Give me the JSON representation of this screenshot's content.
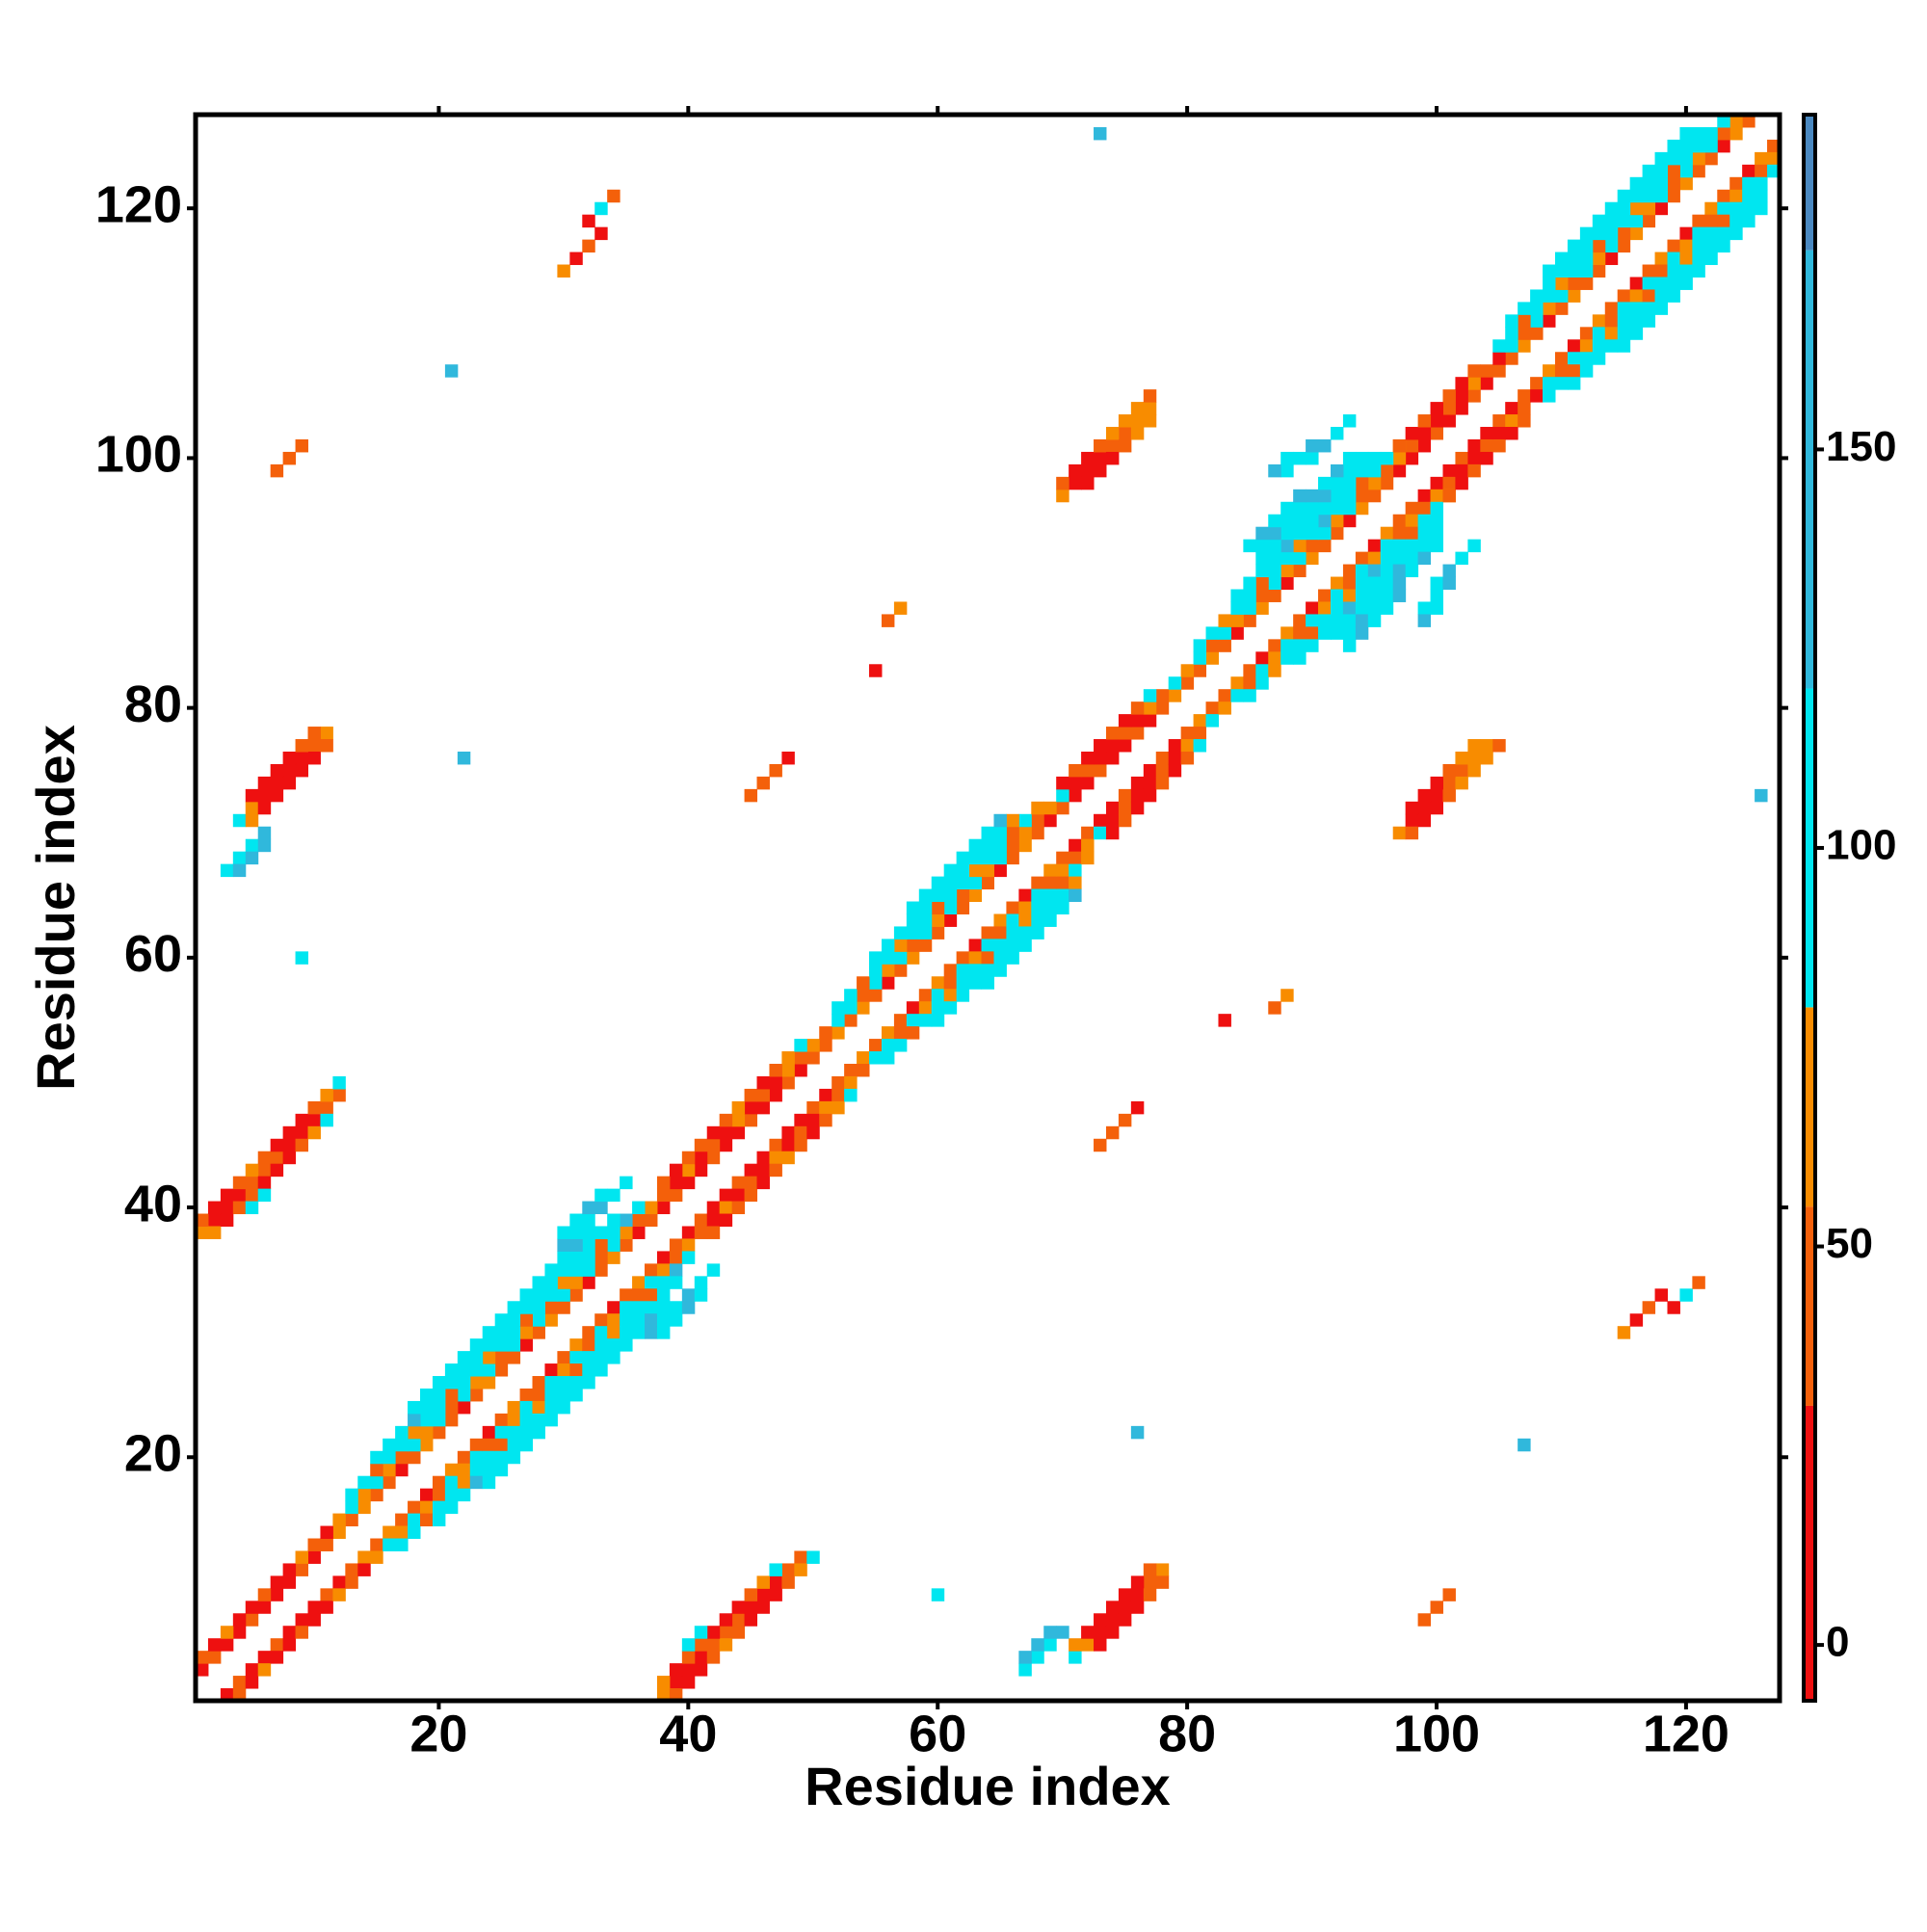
{
  "chart_data": {
    "type": "heatmap",
    "xlabel": "Residue index",
    "ylabel": "Residue index",
    "xlim": [
      0.5,
      127.5
    ],
    "ylim": [
      0.5,
      127.5
    ],
    "xticks": [
      20,
      40,
      60,
      80,
      100,
      120
    ],
    "yticks": [
      20,
      40,
      60,
      80,
      100,
      120
    ],
    "symmetric": true,
    "clim": [
      -7,
      192
    ],
    "cticks": [
      0,
      50,
      100,
      150
    ],
    "color_stops": [
      {
        "value": -7,
        "color": "#ee1010"
      },
      {
        "value": 30,
        "color": "#f4600a"
      },
      {
        "value": 55,
        "color": "#f88c00"
      },
      {
        "value": 80,
        "color": "#00e6f0"
      },
      {
        "value": 120,
        "color": "#30b8dc"
      },
      {
        "value": 175,
        "color": "#4a88c0"
      }
    ],
    "runs": [
      {
        "offset": 2,
        "start": 1,
        "values": [
          10,
          40,
          10,
          10,
          40,
          10,
          10,
          10,
          40,
          10,
          40,
          65,
          40,
          65,
          40,
          40,
          10,
          40,
          65,
          40,
          40,
          10,
          40,
          65,
          40,
          40,
          10,
          40,
          65,
          40,
          40,
          10,
          40,
          65,
          40,
          10,
          40,
          10,
          40,
          10,
          10,
          40,
          10,
          10,
          40,
          10,
          10,
          40,
          10,
          40,
          40,
          65,
          40,
          65,
          40,
          10,
          40,
          65,
          40,
          40,
          10,
          40,
          65,
          40,
          10,
          40,
          65,
          40,
          10,
          40,
          10,
          10,
          40,
          10,
          10,
          40,
          10,
          40,
          65,
          40,
          40,
          65,
          40,
          10,
          40,
          65,
          40,
          10,
          40,
          65,
          40,
          40,
          10,
          65,
          40,
          40,
          10,
          10,
          10,
          40,
          10,
          10,
          40,
          10,
          40,
          40,
          65,
          40,
          10,
          40,
          65,
          40,
          40,
          10,
          40,
          65,
          40,
          10,
          40,
          65,
          40,
          40,
          10,
          65,
          40
        ]
      },
      {
        "offset": 3,
        "start": 1,
        "values": [
          40,
          10,
          65,
          10,
          10,
          40,
          10,
          10,
          65,
          40,
          10,
          65,
          100,
          65,
          100,
          65,
          40,
          100,
          65,
          100,
          40,
          100,
          65,
          100,
          40,
          100,
          65,
          100,
          40,
          100,
          65,
          100,
          40,
          100,
          65,
          40,
          65,
          40,
          10,
          65,
          10,
          40,
          10,
          65,
          10,
          40,
          10,
          65,
          40,
          65,
          40,
          100,
          100,
          40,
          100,
          65,
          100,
          40,
          100,
          65,
          100,
          40,
          100,
          65,
          100,
          40,
          65,
          40,
          65,
          100,
          10,
          40,
          10,
          10,
          40,
          10,
          65,
          40,
          100,
          65,
          100,
          40,
          100,
          65,
          100,
          40,
          100,
          65,
          100,
          40,
          100,
          65,
          100,
          40,
          65,
          40,
          65,
          40,
          10,
          10,
          40,
          10,
          65,
          40,
          10,
          100,
          40,
          100,
          65,
          100,
          40,
          100,
          65,
          100,
          40,
          100,
          65,
          100,
          40,
          100,
          65,
          100,
          40,
          65
        ]
      },
      {
        "offset": 4,
        "start": 13,
        "values": [
          100,
          100,
          40,
          100,
          100,
          65,
          100,
          100,
          40,
          100,
          100,
          65,
          100,
          100,
          40,
          100,
          100,
          65,
          100,
          100,
          40,
          100,
          140,
          100
        ]
      },
      {
        "offset": 4,
        "start": 52,
        "values": [
          100,
          100,
          40,
          100,
          100,
          65,
          100,
          100,
          40,
          100,
          100,
          65,
          100,
          100,
          40,
          100,
          65
        ]
      },
      {
        "offset": 4,
        "start": 81,
        "values": [
          100,
          100,
          65,
          100,
          100,
          40,
          100,
          100,
          65,
          100,
          140,
          100,
          100,
          40,
          100,
          100,
          65
        ]
      },
      {
        "offset": 4,
        "start": 105,
        "values": [
          100,
          100,
          40,
          100,
          100,
          65,
          100,
          100,
          40,
          100,
          100,
          65,
          100,
          100,
          40,
          100,
          100,
          100,
          100
        ]
      },
      {
        "offset": 4,
        "start": 38,
        "values": [
          40,
          10,
          40,
          40,
          10,
          40,
          65,
          40,
          10,
          40,
          65,
          100
        ]
      },
      {
        "offset": 4,
        "start": 70,
        "values": [
          10,
          40,
          10,
          10,
          40,
          10,
          40,
          100
        ]
      },
      {
        "offset": 4,
        "start": 97,
        "values": [
          40,
          10,
          40,
          10,
          40,
          10,
          40
        ]
      },
      {
        "offset": 5,
        "start": 15,
        "values": [
          100,
          100,
          100,
          140,
          100,
          100,
          100,
          100,
          100,
          100,
          100,
          100,
          100,
          100,
          100,
          100,
          100,
          100,
          100,
          100
        ]
      },
      {
        "offset": 5,
        "start": 55,
        "values": [
          100,
          100,
          100,
          100,
          100,
          100,
          100,
          100,
          100,
          100,
          100,
          65
        ]
      },
      {
        "offset": 5,
        "start": 84,
        "values": [
          100,
          100,
          100,
          100,
          140,
          100,
          100,
          100,
          100,
          100,
          100,
          100
        ]
      },
      {
        "offset": 5,
        "start": 106,
        "values": [
          100,
          100,
          100,
          100,
          100,
          100,
          100,
          100,
          100,
          100,
          100,
          100,
          100,
          100,
          100,
          100
        ]
      },
      {
        "offset": 6,
        "start": 18,
        "values": [
          100,
          100,
          100,
          100,
          100,
          100,
          100,
          100,
          100,
          100,
          100,
          100,
          100,
          140,
          100
        ]
      },
      {
        "offset": 6,
        "start": 58,
        "values": [
          100,
          100,
          100,
          100,
          100,
          100,
          100,
          140
        ]
      },
      {
        "offset": 6,
        "start": 86,
        "values": [
          100,
          100,
          100,
          100,
          100,
          140,
          100,
          100,
          100
        ]
      },
      {
        "offset": 6,
        "start": 109,
        "values": [
          100,
          100,
          100,
          100,
          100,
          100,
          100,
          100,
          100,
          100,
          100,
          100
        ]
      },
      {
        "offset": 7,
        "start": 30,
        "values": [
          140,
          100,
          100,
          140,
          100,
          100
        ]
      },
      {
        "offset": 7,
        "start": 86,
        "values": [
          100,
          140,
          100,
          100,
          140,
          100,
          140,
          100
        ]
      },
      {
        "offset": 8,
        "start": 30,
        "values": [
          100,
          100,
          140,
          100
        ]
      },
      {
        "offset": 8,
        "start": 85,
        "values": [
          100,
          140,
          100,
          100,
          140
        ]
      },
      {
        "offset": 10,
        "start": 90,
        "values": [
          100,
          140,
          100,
          100
        ]
      },
      {
        "offset": 11,
        "start": 88,
        "values": [
          100,
          100,
          140
        ]
      },
      {
        "offset": 12,
        "start": 87,
        "values": [
          140,
          100
        ]
      },
      {
        "offset": 37,
        "start": 1,
        "values": [
          65,
          10,
          10,
          10,
          40,
          40,
          40,
          10,
          10,
          10,
          40,
          40
        ]
      },
      {
        "offset": 38,
        "start": 1,
        "values": [
          40,
          10,
          10,
          40,
          65,
          40,
          10,
          10,
          10,
          40,
          65,
          100
        ]
      },
      {
        "offset": 36,
        "start": 2,
        "values": [
          65,
          10,
          40,
          40,
          10,
          10,
          10,
          40,
          65,
          100
        ]
      },
      {
        "offset": 35,
        "start": 5,
        "values": [
          100,
          100
        ]
      },
      {
        "offset": 67,
        "start": 4,
        "values": [
          100,
          65,
          10,
          10,
          10,
          10,
          40,
          65
        ]
      },
      {
        "offset": 66,
        "start": 5,
        "values": [
          65,
          10,
          10,
          10,
          10,
          10,
          40
        ]
      },
      {
        "offset": 68,
        "start": 5,
        "values": [
          10,
          10,
          10,
          10,
          40,
          40
        ]
      },
      {
        "offset": 64,
        "start": 3,
        "values": [
          100,
          100,
          100,
          140
        ]
      },
      {
        "offset": 63,
        "start": 4,
        "values": [
          140,
          140,
          140
        ]
      },
      {
        "offset": 27,
        "start": 70,
        "values": [
          65,
          10,
          10,
          10,
          40,
          40,
          65,
          65
        ]
      },
      {
        "offset": 28,
        "start": 70,
        "values": [
          40,
          10,
          10,
          40,
          65,
          65,
          65,
          40
        ]
      },
      {
        "offset": 26,
        "start": 72,
        "values": [
          10,
          10,
          10,
          40,
          65,
          65
        ]
      },
      {
        "offset": 92,
        "start": 7,
        "values": [
          40,
          40,
          40
        ]
      },
      {
        "offset": 28,
        "start": 45,
        "values": [
          40,
          40,
          40,
          10
        ]
      },
      {
        "offset": 31,
        "start": 56,
        "values": [
          40,
          65
        ]
      },
      {
        "offset": 28,
        "start": 55,
        "values": [
          10
        ]
      },
      {
        "offset": 85,
        "start": 30,
        "values": [
          65,
          10,
          40,
          10
        ]
      },
      {
        "offset": 87,
        "start": 32,
        "values": [
          10,
          100,
          40
        ]
      },
      {
        "offset": 54,
        "start": 22,
        "values": [
          140
        ]
      },
      {
        "offset": 86,
        "start": 21,
        "values": [
          140
        ]
      },
      {
        "offset": 53,
        "start": 73,
        "values": [
          140
        ]
      },
      {
        "offset": 51,
        "start": 9,
        "values": [
          100
        ]
      }
    ]
  }
}
